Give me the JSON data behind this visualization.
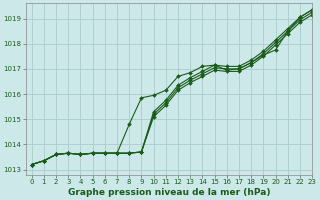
{
  "title": "Graphe pression niveau de la mer (hPa)",
  "bg_color": "#cce8e8",
  "grid_color": "#aacccc",
  "line_color": "#1a5c1a",
  "marker": "D",
  "marker_size": 2.0,
  "linewidth": 0.8,
  "xlim": [
    -0.5,
    23
  ],
  "ylim": [
    1012.8,
    1019.6
  ],
  "yticks": [
    1013,
    1014,
    1015,
    1016,
    1017,
    1018,
    1019
  ],
  "xticks": [
    0,
    1,
    2,
    3,
    4,
    5,
    6,
    7,
    8,
    9,
    10,
    11,
    12,
    13,
    14,
    15,
    16,
    17,
    18,
    19,
    20,
    21,
    22,
    23
  ],
  "xlabel_fontsize": 6.5,
  "tick_fontsize": 5,
  "series": [
    [
      1013.2,
      1013.35,
      1013.6,
      1013.65,
      1013.6,
      1013.65,
      1013.65,
      1013.65,
      1014.8,
      1015.85,
      1015.95,
      1016.15,
      1016.7,
      1016.85,
      1017.1,
      1017.15,
      1016.95,
      1017.0,
      1017.25,
      1017.55,
      1017.75,
      1018.5,
      1019.05,
      1019.35
    ],
    [
      1013.2,
      1013.35,
      1013.6,
      1013.65,
      1013.6,
      1013.65,
      1013.65,
      1013.65,
      1013.65,
      1013.7,
      1015.3,
      1015.75,
      1016.35,
      1016.65,
      1016.9,
      1017.15,
      1017.1,
      1017.1,
      1017.35,
      1017.7,
      1018.15,
      1018.6,
      1019.05,
      1019.35
    ],
    [
      1013.2,
      1013.35,
      1013.6,
      1013.65,
      1013.6,
      1013.65,
      1013.65,
      1013.65,
      1013.65,
      1013.7,
      1015.2,
      1015.65,
      1016.25,
      1016.55,
      1016.8,
      1017.05,
      1017.0,
      1017.0,
      1017.25,
      1017.6,
      1018.05,
      1018.5,
      1018.95,
      1019.25
    ],
    [
      1013.2,
      1013.35,
      1013.6,
      1013.65,
      1013.6,
      1013.65,
      1013.65,
      1013.65,
      1013.65,
      1013.7,
      1015.1,
      1015.55,
      1016.15,
      1016.45,
      1016.7,
      1016.95,
      1016.9,
      1016.9,
      1017.15,
      1017.5,
      1017.95,
      1018.4,
      1018.85,
      1019.15
    ]
  ]
}
